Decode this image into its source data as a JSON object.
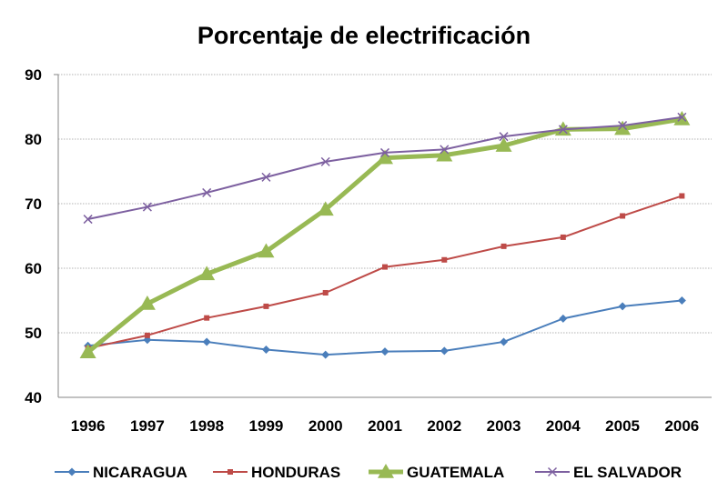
{
  "chart_data": {
    "type": "line",
    "title": "Porcentaje de electrificación",
    "xlabel": "",
    "ylabel": "",
    "ylim": [
      40,
      90
    ],
    "yticks": [
      40,
      50,
      60,
      70,
      80,
      90
    ],
    "grid": "horizontal",
    "legend_position": "bottom",
    "categories": [
      "1996",
      "1997",
      "1998",
      "1999",
      "2000",
      "2001",
      "2002",
      "2003",
      "2004",
      "2005",
      "2006"
    ],
    "series": [
      {
        "name": "NICARAGUA",
        "color": "#4a7ebb",
        "marker": "diamond",
        "values": [
          48.0,
          48.9,
          48.6,
          47.4,
          46.6,
          47.1,
          47.2,
          48.6,
          52.2,
          54.1,
          55.0
        ]
      },
      {
        "name": "HONDURAS",
        "color": "#be4b48",
        "marker": "square",
        "values": [
          47.6,
          49.6,
          52.3,
          54.1,
          56.2,
          60.2,
          61.3,
          63.4,
          64.8,
          68.1,
          71.2
        ]
      },
      {
        "name": "GUATEMALA",
        "color": "#98b954",
        "marker": "triangle",
        "values": [
          47.0,
          54.5,
          59.1,
          62.6,
          69.1,
          77.1,
          77.5,
          79.0,
          81.5,
          81.6,
          83.1
        ]
      },
      {
        "name": "EL SALVADOR",
        "color": "#7d60a0",
        "marker": "x",
        "values": [
          67.6,
          69.5,
          71.7,
          74.1,
          76.5,
          77.9,
          78.4,
          80.4,
          81.5,
          82.1,
          83.4
        ]
      }
    ]
  }
}
